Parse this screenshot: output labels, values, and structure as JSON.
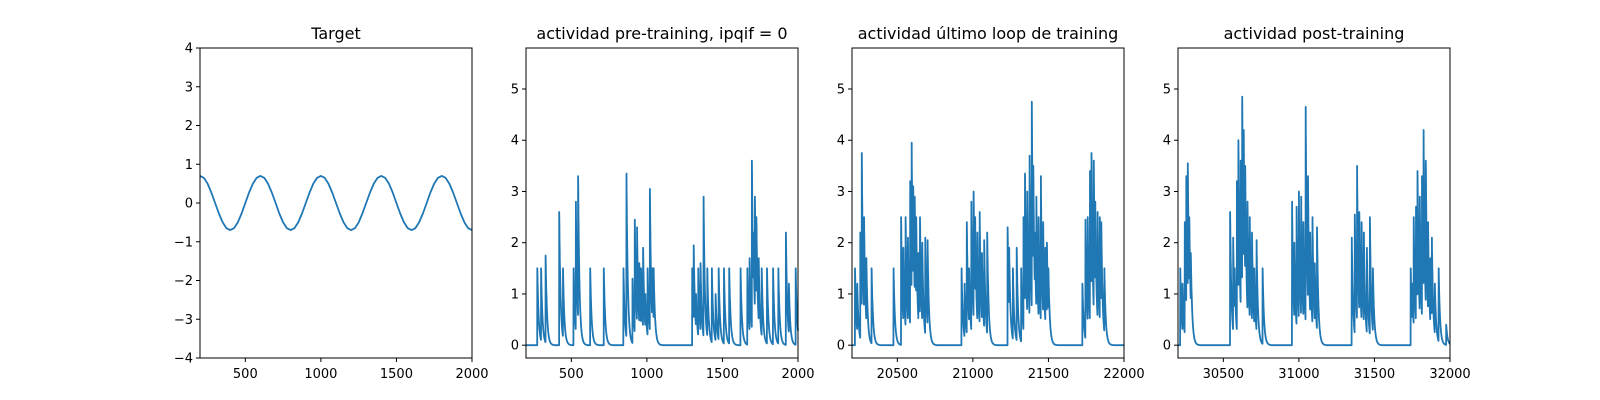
{
  "figure": {
    "background": "#ffffff",
    "line_color": "#1f77b4"
  },
  "chart_data": [
    {
      "type": "line",
      "title": "Target",
      "xlim": [
        200,
        2000
      ],
      "ylim": [
        -4,
        4
      ],
      "xticks": [
        500,
        1000,
        1500,
        2000
      ],
      "yticks": [
        -4,
        -3,
        -2,
        -1,
        0,
        1,
        2,
        3,
        4
      ],
      "grid": false,
      "legend": "none",
      "series": [
        {
          "color": "#1f77b4",
          "x": [
            200,
            225,
            250,
            275,
            300,
            325,
            350,
            375,
            400,
            425,
            450,
            475,
            500,
            525,
            550,
            575,
            600,
            625,
            650,
            675,
            700,
            725,
            750,
            775,
            800,
            825,
            850,
            875,
            900,
            925,
            950,
            975,
            1000,
            1025,
            1050,
            1075,
            1100,
            1125,
            1150,
            1175,
            1200,
            1225,
            1250,
            1275,
            1300,
            1325,
            1350,
            1375,
            1400,
            1425,
            1450,
            1475,
            1500,
            1525,
            1550,
            1575,
            1600,
            1625,
            1650,
            1675,
            1700,
            1725,
            1750,
            1775,
            1800,
            1825,
            1850,
            1875,
            1900,
            1925,
            1950,
            1975,
            2000
          ],
          "y": [
            0.7,
            0.65,
            0.5,
            0.27,
            0.0,
            -0.27,
            -0.5,
            -0.65,
            -0.7,
            -0.65,
            -0.5,
            -0.27,
            0.0,
            0.27,
            0.5,
            0.65,
            0.7,
            0.65,
            0.5,
            0.27,
            0.0,
            -0.27,
            -0.5,
            -0.65,
            -0.7,
            -0.65,
            -0.5,
            -0.27,
            0.0,
            0.27,
            0.5,
            0.65,
            0.7,
            0.65,
            0.5,
            0.27,
            0.0,
            -0.27,
            -0.5,
            -0.65,
            -0.7,
            -0.65,
            -0.5,
            -0.27,
            0.0,
            0.27,
            0.5,
            0.65,
            0.7,
            0.65,
            0.5,
            0.27,
            0.0,
            -0.27,
            -0.5,
            -0.65,
            -0.7,
            -0.65,
            -0.5,
            -0.27,
            0.0,
            0.27,
            0.5,
            0.65,
            0.7,
            0.65,
            0.5,
            0.27,
            0.0,
            -0.27,
            -0.5,
            -0.65,
            -0.7
          ]
        }
      ]
    },
    {
      "type": "line",
      "title": "actividad pre-training, ipqif = 0",
      "xlim": [
        200,
        2000
      ],
      "ylim": [
        -0.25,
        5.8
      ],
      "xticks": [
        500,
        1000,
        1500,
        2000
      ],
      "yticks": [
        0,
        1,
        2,
        3,
        4,
        5
      ],
      "grid": false,
      "legend": "none",
      "series": [
        {
          "color": "#1f77b4",
          "spikes": [
            [
              275,
              1.5
            ],
            [
              300,
              1.5
            ],
            [
              330,
              1.75
            ],
            [
              420,
              2.6
            ],
            [
              445,
              1.5
            ],
            [
              515,
              1.5
            ],
            [
              530,
              2.8
            ],
            [
              545,
              3.3
            ],
            [
              625,
              1.5
            ],
            [
              715,
              1.5
            ],
            [
              845,
              1.5
            ],
            [
              865,
              3.35
            ],
            [
              905,
              1.3
            ],
            [
              920,
              2.45
            ],
            [
              935,
              2.3
            ],
            [
              950,
              1.6
            ],
            [
              962,
              1.5
            ],
            [
              975,
              1.9
            ],
            [
              990,
              1.0
            ],
            [
              1005,
              1.5
            ],
            [
              1020,
              3.05
            ],
            [
              1035,
              1.5
            ],
            [
              1045,
              1.5
            ],
            [
              1300,
              1.5
            ],
            [
              1310,
              1.95
            ],
            [
              1325,
              1.0
            ],
            [
              1340,
              1.5
            ],
            [
              1355,
              1.6
            ],
            [
              1375,
              2.9
            ],
            [
              1400,
              1.5
            ],
            [
              1430,
              1.5
            ],
            [
              1455,
              1.0
            ],
            [
              1475,
              1.5
            ],
            [
              1510,
              1.5
            ],
            [
              1545,
              1.5
            ],
            [
              1620,
              1.5
            ],
            [
              1665,
              1.5
            ],
            [
              1680,
              1.7
            ],
            [
              1695,
              3.6
            ],
            [
              1705,
              2.2
            ],
            [
              1715,
              2.9
            ],
            [
              1725,
              2.5
            ],
            [
              1740,
              1.7
            ],
            [
              1760,
              1.5
            ],
            [
              1795,
              1.5
            ],
            [
              1835,
              1.5
            ],
            [
              1870,
              1.5
            ],
            [
              1920,
              2.2
            ],
            [
              1940,
              1.2
            ],
            [
              1985,
              1.5
            ]
          ]
        }
      ]
    },
    {
      "type": "line",
      "title": "actividad último loop de training",
      "xlim": [
        20200,
        22000
      ],
      "ylim": [
        -0.25,
        5.8
      ],
      "xticks": [
        20500,
        21000,
        21500,
        22000
      ],
      "yticks": [
        0,
        1,
        2,
        3,
        4,
        5
      ],
      "grid": false,
      "legend": "none",
      "series": [
        {
          "color": "#1f77b4",
          "spikes": [
            [
              20220,
              1.5
            ],
            [
              20235,
              1.2
            ],
            [
              20255,
              2.2
            ],
            [
              20265,
              3.75
            ],
            [
              20280,
              2.5
            ],
            [
              20295,
              1.7
            ],
            [
              20330,
              1.5
            ],
            [
              20475,
              1.5
            ],
            [
              20525,
              2.5
            ],
            [
              20540,
              1.9
            ],
            [
              20555,
              2.5
            ],
            [
              20570,
              2.1
            ],
            [
              20585,
              3.2
            ],
            [
              20595,
              3.95
            ],
            [
              20605,
              3.1
            ],
            [
              20615,
              2.9
            ],
            [
              20625,
              2.5
            ],
            [
              20640,
              1.8
            ],
            [
              20650,
              2.5
            ],
            [
              20665,
              2.0
            ],
            [
              20685,
              2.1
            ],
            [
              20700,
              2.05
            ],
            [
              20925,
              1.5
            ],
            [
              20945,
              1.2
            ],
            [
              20960,
              2.4
            ],
            [
              20975,
              1.5
            ],
            [
              20990,
              2.8
            ],
            [
              21005,
              3.0
            ],
            [
              21015,
              2.5
            ],
            [
              21030,
              2.2
            ],
            [
              21045,
              2.6
            ],
            [
              21060,
              1.8
            ],
            [
              21075,
              2.05
            ],
            [
              21095,
              2.2
            ],
            [
              21230,
              2.3
            ],
            [
              21240,
              1.9
            ],
            [
              21265,
              1.5
            ],
            [
              21290,
              1.9
            ],
            [
              21320,
              1.5
            ],
            [
              21335,
              2.5
            ],
            [
              21345,
              3.35
            ],
            [
              21360,
              3.0
            ],
            [
              21375,
              3.7
            ],
            [
              21390,
              4.75
            ],
            [
              21400,
              3.5
            ],
            [
              21410,
              2.2
            ],
            [
              21420,
              2.9
            ],
            [
              21435,
              2.5
            ],
            [
              21450,
              3.3
            ],
            [
              21465,
              2.4
            ],
            [
              21480,
              1.9
            ],
            [
              21490,
              2.0
            ],
            [
              21500,
              1.5
            ],
            [
              21725,
              1.2
            ],
            [
              21745,
              2.45
            ],
            [
              21760,
              2.5
            ],
            [
              21775,
              3.4
            ],
            [
              21785,
              3.75
            ],
            [
              21800,
              3.6
            ],
            [
              21810,
              2.8
            ],
            [
              21825,
              2.6
            ],
            [
              21840,
              2.5
            ],
            [
              21850,
              2.4
            ],
            [
              21870,
              1.5
            ]
          ]
        }
      ]
    },
    {
      "type": "line",
      "title": "actividad post-training",
      "xlim": [
        30200,
        32000
      ],
      "ylim": [
        -0.25,
        5.8
      ],
      "xticks": [
        30500,
        31000,
        31500,
        32000
      ],
      "yticks": [
        0,
        1,
        2,
        3,
        4,
        5
      ],
      "grid": false,
      "legend": "none",
      "series": [
        {
          "color": "#1f77b4",
          "spikes": [
            [
              30215,
              1.5
            ],
            [
              30230,
              1.2
            ],
            [
              30245,
              2.4
            ],
            [
              30255,
              3.3
            ],
            [
              30265,
              3.55
            ],
            [
              30275,
              2.5
            ],
            [
              30285,
              1.8
            ],
            [
              30545,
              2.6
            ],
            [
              30565,
              2.1
            ],
            [
              30575,
              1.5
            ],
            [
              30590,
              3.2
            ],
            [
              30600,
              4.0
            ],
            [
              30615,
              3.6
            ],
            [
              30625,
              4.85
            ],
            [
              30635,
              4.2
            ],
            [
              30645,
              3.5
            ],
            [
              30660,
              2.8
            ],
            [
              30675,
              2.5
            ],
            [
              30690,
              2.2
            ],
            [
              30705,
              1.5
            ],
            [
              30720,
              2.05
            ],
            [
              30760,
              1.5
            ],
            [
              30955,
              2.8
            ],
            [
              30970,
              2.0
            ],
            [
              30985,
              2.7
            ],
            [
              31000,
              3.0
            ],
            [
              31015,
              2.9
            ],
            [
              31030,
              2.4
            ],
            [
              31045,
              4.65
            ],
            [
              31060,
              3.3
            ],
            [
              31075,
              2.2
            ],
            [
              31090,
              2.5
            ],
            [
              31105,
              1.6
            ],
            [
              31120,
              2.3
            ],
            [
              31350,
              2.1
            ],
            [
              31370,
              2.55
            ],
            [
              31385,
              3.5
            ],
            [
              31400,
              2.6
            ],
            [
              31415,
              2.4
            ],
            [
              31430,
              2.2
            ],
            [
              31450,
              1.9
            ],
            [
              31470,
              2.5
            ],
            [
              31490,
              1.5
            ],
            [
              31740,
              1.5
            ],
            [
              31750,
              1.2
            ],
            [
              31760,
              2.5
            ],
            [
              31775,
              2.7
            ],
            [
              31785,
              3.4
            ],
            [
              31800,
              2.9
            ],
            [
              31815,
              3.3
            ],
            [
              31825,
              4.2
            ],
            [
              31840,
              3.6
            ],
            [
              31855,
              2.4
            ],
            [
              31870,
              1.7
            ],
            [
              31880,
              2.1
            ],
            [
              31900,
              1.2
            ],
            [
              31925,
              1.5
            ],
            [
              31975,
              0.4
            ]
          ]
        }
      ]
    }
  ]
}
